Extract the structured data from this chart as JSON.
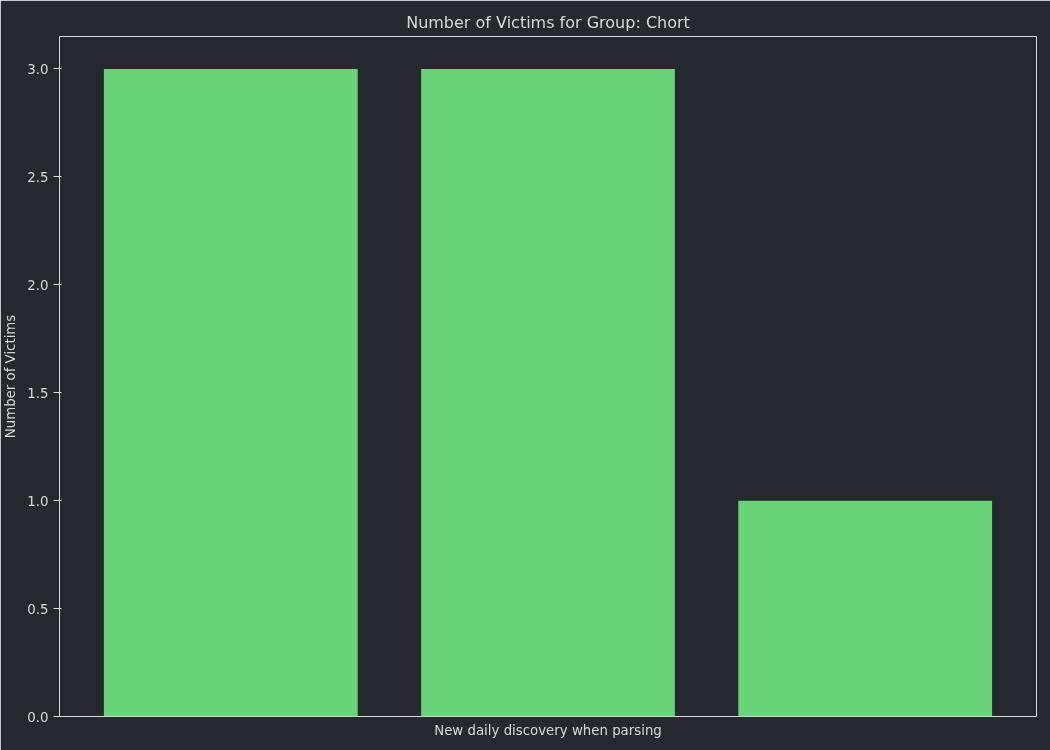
{
  "chart_data": {
    "type": "bar",
    "title": "Number of Victims for Group: Chort",
    "xlabel": "New daily discovery when parsing",
    "ylabel": "Number of Victims",
    "categories": [
      null,
      null,
      null
    ],
    "values": [
      3,
      3,
      1
    ],
    "color": "#6bd47b",
    "ylim": [
      0,
      3.15
    ],
    "yticks": [
      {
        "value": 0,
        "label": "0.0"
      },
      {
        "value": 0.5,
        "label": "0.5"
      },
      {
        "value": 1,
        "label": "1.0"
      },
      {
        "value": 1.5,
        "label": "1.5"
      },
      {
        "value": 2,
        "label": "2.0"
      },
      {
        "value": 2.5,
        "label": "2.5"
      },
      {
        "value": 3,
        "label": "3.0"
      }
    ],
    "grid": false
  }
}
